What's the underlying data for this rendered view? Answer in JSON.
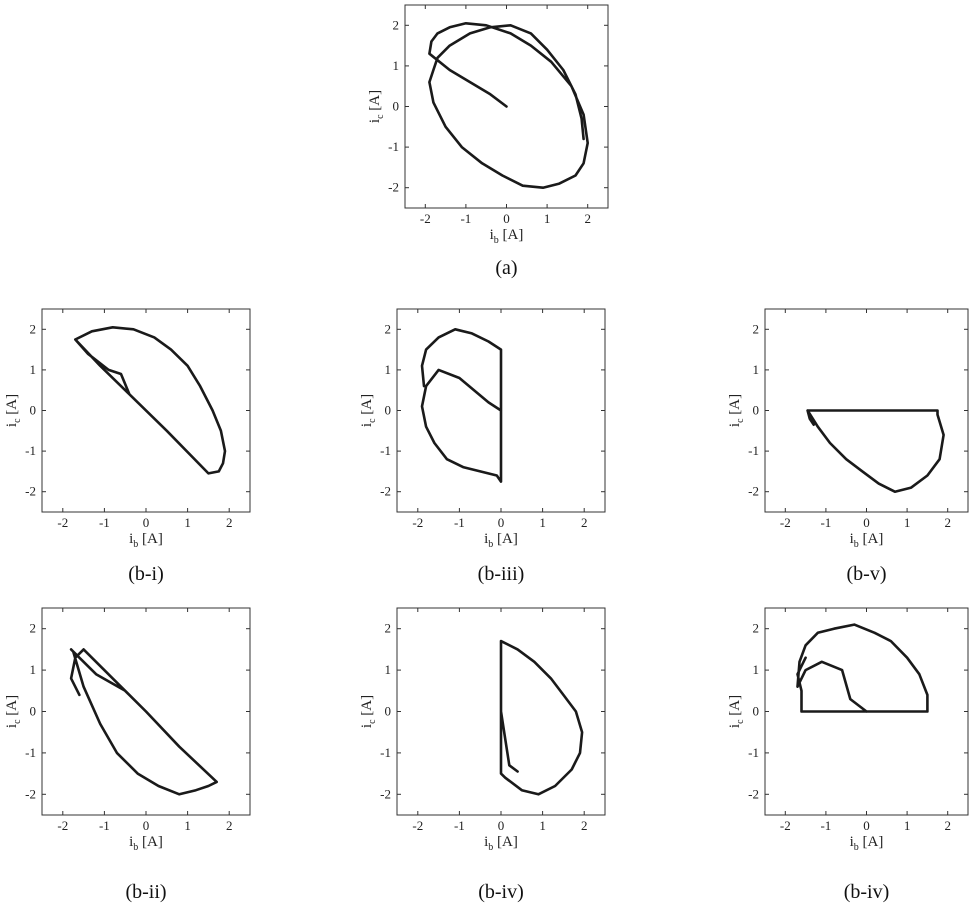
{
  "figure": {
    "panels": [
      {
        "caption": "(a)"
      },
      {
        "caption": "(b-i)"
      },
      {
        "caption": "(b-iii)"
      },
      {
        "caption": "(b-v)"
      },
      {
        "caption": "(b-ii)"
      },
      {
        "caption": "(b-iv)"
      },
      {
        "caption": "(b-iv)"
      }
    ]
  },
  "chart_data": [
    {
      "type": "line",
      "title": "(a)",
      "xlabel": "i_b [A]",
      "ylabel": "i_c [A]",
      "xlim": [
        -2.5,
        2.5
      ],
      "ylim": [
        -2.5,
        2.5
      ],
      "xticks": [
        -2,
        -1,
        0,
        1,
        2
      ],
      "yticks": [
        -2,
        -1,
        0,
        1,
        2
      ],
      "series": [
        {
          "x": [
            0,
            -0.4,
            -1.4,
            -1.9,
            -1.85,
            -1.7,
            -1.4,
            -1.0,
            -0.5,
            0.1,
            0.6,
            1.1,
            1.6,
            1.9,
            2.0,
            1.9,
            1.7,
            1.3,
            0.9,
            0.4,
            -0.1,
            -0.6,
            -1.1,
            -1.5,
            -1.8,
            -1.9,
            -1.8,
            -1.7,
            -1.4,
            -0.9,
            -0.4,
            0.1,
            0.6,
            1.0,
            1.4,
            1.7,
            1.85,
            1.9
          ],
          "y": [
            0,
            0.3,
            0.9,
            1.3,
            1.6,
            1.8,
            1.95,
            2.05,
            2.0,
            1.8,
            1.5,
            1.1,
            0.5,
            -0.2,
            -0.9,
            -1.4,
            -1.7,
            -1.9,
            -2.0,
            -1.95,
            -1.7,
            -1.4,
            -1.0,
            -0.5,
            0.1,
            0.6,
            0.9,
            1.2,
            1.5,
            1.8,
            1.95,
            2.0,
            1.8,
            1.4,
            0.9,
            0.3,
            -0.3,
            -0.8
          ]
        }
      ]
    },
    {
      "type": "line",
      "title": "(b-i)",
      "xlabel": "i_b [A]",
      "ylabel": "i_c [A]",
      "xlim": [
        -2.5,
        2.5
      ],
      "ylim": [
        -2.5,
        2.5
      ],
      "xticks": [
        -2,
        -1,
        0,
        1,
        2
      ],
      "yticks": [
        -2,
        -1,
        0,
        1,
        2
      ],
      "series": [
        {
          "x": [
            -1.7,
            -1.3,
            -0.8,
            -0.3,
            0.2,
            0.6,
            1.0,
            1.3,
            1.6,
            1.8,
            1.9,
            1.85,
            1.75,
            1.5,
            0.5,
            -0.5,
            -1.1,
            -1.7,
            -1.4,
            -0.9,
            -0.6,
            -0.4
          ],
          "y": [
            1.75,
            1.95,
            2.05,
            2.0,
            1.8,
            1.5,
            1.1,
            0.6,
            0.0,
            -0.5,
            -1.0,
            -1.3,
            -1.5,
            -1.55,
            -0.5,
            0.5,
            1.1,
            1.75,
            1.4,
            1.0,
            0.9,
            0.4
          ]
        }
      ]
    },
    {
      "type": "line",
      "title": "(b-iii)",
      "xlabel": "i_b [A]",
      "ylabel": "i_c [A]",
      "xlim": [
        -2.5,
        2.5
      ],
      "ylim": [
        -2.5,
        2.5
      ],
      "xticks": [
        -2,
        -1,
        0,
        1,
        2
      ],
      "yticks": [
        -2,
        -1,
        0,
        1,
        2
      ],
      "series": [
        {
          "x": [
            0,
            -0.3,
            -1.0,
            -1.5,
            -1.8,
            -1.9,
            -1.8,
            -1.6,
            -1.3,
            -0.9,
            -0.5,
            -0.1,
            0,
            0,
            0,
            -0.3,
            -0.7,
            -1.1,
            -1.5,
            -1.8,
            -1.9,
            -1.85
          ],
          "y": [
            0,
            0.2,
            0.8,
            1.0,
            0.6,
            0.1,
            -0.4,
            -0.8,
            -1.2,
            -1.4,
            -1.5,
            -1.6,
            -1.75,
            0,
            1.5,
            1.7,
            1.9,
            2.0,
            1.8,
            1.5,
            1.1,
            0.6
          ]
        }
      ]
    },
    {
      "type": "line",
      "title": "(b-v)",
      "xlabel": "i_b [A]",
      "ylabel": "i_c [A]",
      "xlim": [
        -2.5,
        2.5
      ],
      "ylim": [
        -2.5,
        2.5
      ],
      "xticks": [
        -2,
        -1,
        0,
        1,
        2
      ],
      "yticks": [
        -2,
        -1,
        0,
        1,
        2
      ],
      "series": [
        {
          "x": [
            -1.45,
            -1.2,
            -0.9,
            -0.5,
            -0.1,
            0.3,
            0.7,
            1.1,
            1.5,
            1.8,
            1.9,
            1.75,
            1.75,
            0,
            -1.45,
            -1.4,
            -1.3
          ],
          "y": [
            0,
            -0.4,
            -0.8,
            -1.2,
            -1.5,
            -1.8,
            -2.0,
            -1.9,
            -1.6,
            -1.2,
            -0.6,
            -0.1,
            0,
            0,
            0,
            -0.2,
            -0.35
          ]
        }
      ]
    },
    {
      "type": "line",
      "title": "(b-ii)",
      "xlabel": "i_b [A]",
      "ylabel": "i_c [A]",
      "xlim": [
        -2.5,
        2.5
      ],
      "ylim": [
        -2.5,
        2.5
      ],
      "xticks": [
        -2,
        -1,
        0,
        1,
        2
      ],
      "yticks": [
        -2,
        -1,
        0,
        1,
        2
      ],
      "series": [
        {
          "x": [
            0,
            -0.5,
            -1.2,
            -1.6,
            -1.8,
            -1.75,
            -1.5,
            -1.1,
            -0.7,
            -0.2,
            0.3,
            0.8,
            1.2,
            1.5,
            1.7,
            0.8,
            0,
            -0.8,
            -1.5,
            -1.7,
            -1.8,
            -1.6
          ],
          "y": [
            0,
            0.5,
            0.9,
            1.3,
            1.5,
            1.45,
            0.6,
            -0.3,
            -1.0,
            -1.5,
            -1.8,
            -2.0,
            -1.9,
            -1.8,
            -1.7,
            -0.85,
            0,
            0.8,
            1.5,
            1.3,
            0.8,
            0.4
          ]
        }
      ]
    },
    {
      "type": "line",
      "title": "(b-iv)",
      "xlabel": "i_b [A]",
      "ylabel": "i_c [A]",
      "xlim": [
        -2.5,
        2.5
      ],
      "ylim": [
        -2.5,
        2.5
      ],
      "xticks": [
        -2,
        -1,
        0,
        1,
        2
      ],
      "yticks": [
        -2,
        -1,
        0,
        1,
        2
      ],
      "series": [
        {
          "x": [
            0,
            0,
            0.4,
            0.8,
            1.2,
            1.5,
            1.8,
            1.95,
            1.9,
            1.7,
            1.3,
            0.9,
            0.5,
            0.1,
            0,
            0,
            0.2,
            0.4
          ],
          "y": [
            0,
            1.7,
            1.5,
            1.2,
            0.8,
            0.4,
            0.0,
            -0.5,
            -1.0,
            -1.4,
            -1.8,
            -2.0,
            -1.9,
            -1.6,
            -1.5,
            0,
            -1.3,
            -1.45
          ]
        }
      ]
    },
    {
      "type": "line",
      "title": "(b-iv)",
      "xlabel": "i_b [A]",
      "ylabel": "i_c [A]",
      "xlim": [
        -2.5,
        2.5
      ],
      "ylim": [
        -2.5,
        2.5
      ],
      "xticks": [
        -2,
        -1,
        0,
        1,
        2
      ],
      "yticks": [
        -2,
        -1,
        0,
        1,
        2
      ],
      "series": [
        {
          "x": [
            0,
            -0.4,
            -0.6,
            -1.1,
            -1.5,
            -1.7,
            -1.65,
            -1.5,
            -1.2,
            -0.8,
            -0.3,
            0.2,
            0.6,
            1.0,
            1.3,
            1.5,
            1.5,
            0,
            -1.6,
            -1.6,
            -1.7,
            -1.5
          ],
          "y": [
            0,
            0.3,
            1.0,
            1.2,
            1.0,
            0.6,
            1.2,
            1.6,
            1.9,
            2.0,
            2.1,
            1.9,
            1.7,
            1.3,
            0.9,
            0.4,
            0,
            0,
            0,
            0.5,
            0.9,
            1.3
          ]
        }
      ]
    }
  ]
}
